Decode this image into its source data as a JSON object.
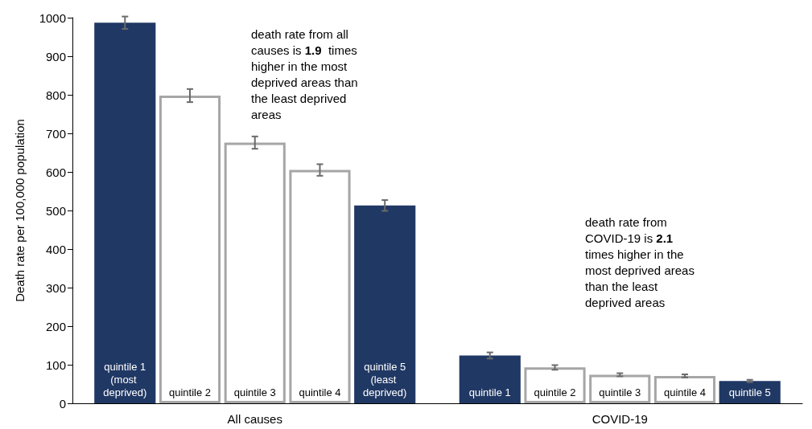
{
  "chart_data": {
    "type": "bar",
    "ylabel": "Death rate per 100,000 population",
    "categories": [
      "All causes",
      "COVID-19"
    ],
    "series": [
      {
        "color": "#203864",
        "values": [
          987,
          124
        ],
        "errors": [
          16,
          8
        ],
        "value_labels": [
          "quintile 1\n(most deprived)",
          "quintile 1"
        ]
      },
      {
        "color": "#ffffff",
        "values": [
          798,
          93
        ],
        "errors": [
          17,
          6
        ],
        "value_labels": [
          "quintile 2",
          "quintile 2"
        ]
      },
      {
        "color": "#ffffff",
        "values": [
          676,
          74
        ],
        "errors": [
          16,
          4
        ],
        "value_labels": [
          "quintile 3",
          "quintile 3"
        ]
      },
      {
        "color": "#ffffff",
        "values": [
          605,
          71
        ],
        "errors": [
          15,
          4
        ],
        "value_labels": [
          "quintile 4",
          "quintile 4"
        ]
      },
      {
        "color": "#203864",
        "values": [
          513,
          58
        ],
        "errors": [
          14,
          3
        ],
        "value_labels": [
          "quintile 5\n(least deprived)",
          "quintile 5"
        ]
      }
    ],
    "ylim": [
      0,
      1000
    ],
    "yticks": [
      0,
      100,
      200,
      300,
      400,
      500,
      600,
      700,
      800,
      900,
      1000
    ],
    "annotations": [
      "death rate from all causes is 1.9 times higher in the most deprived areas than the least deprived areas",
      "death rate from COVID-19 is 2.1 times higher in the most deprived areas than the least deprived areas"
    ]
  }
}
